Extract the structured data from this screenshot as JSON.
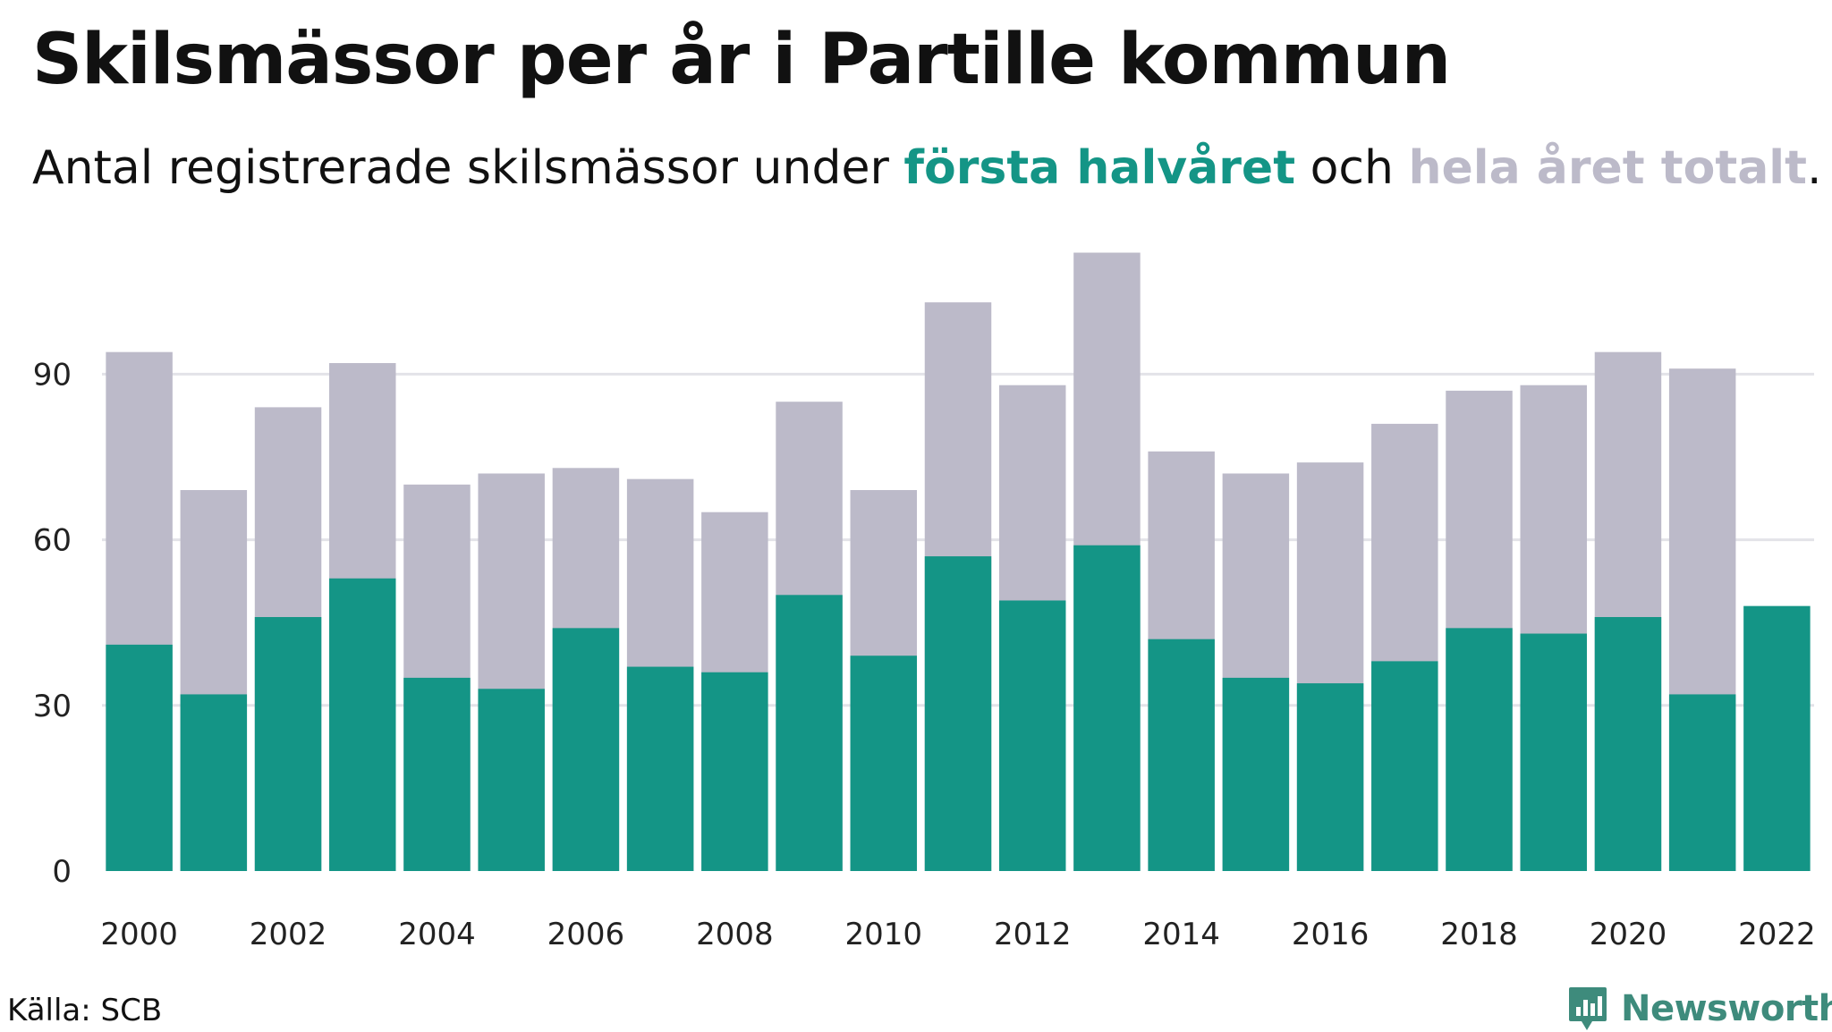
{
  "title": "Skilsmässor per år i Partille kommun",
  "subtitle": {
    "prefix": "Antal registrerade skilsmässor under ",
    "first_half": "första halvåret",
    "middle": " och ",
    "total": "hela året totalt",
    "suffix": "."
  },
  "source": "Källa: SCB",
  "brand": {
    "name": "Newsworthy",
    "icon": "newsworthy-logo-icon"
  },
  "colors": {
    "first_half": "#149586",
    "total": "#bcbac9",
    "grid": "#e3e3e8"
  },
  "chart_data": {
    "type": "bar",
    "stacking": "overlay",
    "categories": [
      2000,
      2001,
      2002,
      2003,
      2004,
      2005,
      2006,
      2007,
      2008,
      2009,
      2010,
      2011,
      2012,
      2013,
      2014,
      2015,
      2016,
      2017,
      2018,
      2019,
      2020,
      2021,
      2022
    ],
    "series": [
      {
        "name": "hela året totalt",
        "color": "#bcbac9",
        "values": [
          94,
          69,
          84,
          92,
          70,
          72,
          73,
          71,
          65,
          85,
          69,
          103,
          88,
          112,
          76,
          72,
          74,
          81,
          87,
          88,
          94,
          91,
          null
        ]
      },
      {
        "name": "första halvåret",
        "color": "#149586",
        "values": [
          41,
          32,
          46,
          53,
          35,
          33,
          44,
          37,
          36,
          50,
          39,
          57,
          49,
          59,
          42,
          35,
          34,
          38,
          44,
          43,
          46,
          32,
          48
        ]
      }
    ],
    "xticks": [
      "2000",
      "2002",
      "2004",
      "2006",
      "2008",
      "2010",
      "2012",
      "2014",
      "2016",
      "2018",
      "2020",
      "2022"
    ],
    "yticks": [
      0,
      30,
      60,
      90
    ],
    "ylim": [
      0,
      115
    ],
    "grid": true,
    "legend": "in-subtitle"
  }
}
